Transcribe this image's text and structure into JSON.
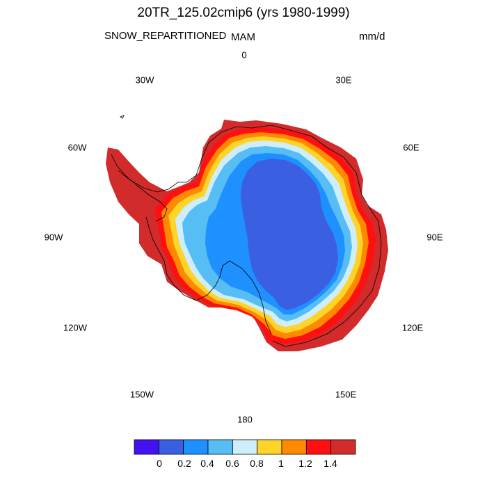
{
  "header": {
    "title": "20TR_125.02cmip6 (yrs 1980-1999)",
    "variable": "SNOW_REPARTITIONED",
    "season": "MAM",
    "units": "mm/d"
  },
  "map": {
    "projection": "south polar stereographic",
    "region": "Antarctica",
    "longitude_labels": [
      "0",
      "30E",
      "60E",
      "90E",
      "120E",
      "150E",
      "180",
      "150W",
      "120W",
      "90W",
      "60W",
      "30W"
    ]
  },
  "colorbar": {
    "tick_labels": [
      "0",
      "0.2",
      "0.4",
      "0.6",
      "0.8",
      "1",
      "1.2",
      "1.4"
    ],
    "colors": [
      "#4412f0",
      "#3a5fe0",
      "#1e90ff",
      "#56bdf5",
      "#cdeefa",
      "#ffd42a",
      "#ff8a00",
      "#ff1010",
      "#d22b2b"
    ]
  },
  "chart_data": {
    "type": "heatmap",
    "title": "20TR_125.02cmip6 (yrs 1980-1999)",
    "variable": "SNOW_REPARTITIONED",
    "season": "MAM",
    "units": "mm/d",
    "levels": [
      0,
      0.2,
      0.4,
      0.6,
      0.8,
      1,
      1.2,
      1.4
    ],
    "pattern": "lowest values (0.2-0.4 mm/d) over the East Antarctic plateau interior, rising through 0.4-0.8 toward the coast, and highest (>1.4 mm/d) along the coastal margin and Antarctic Peninsula"
  }
}
